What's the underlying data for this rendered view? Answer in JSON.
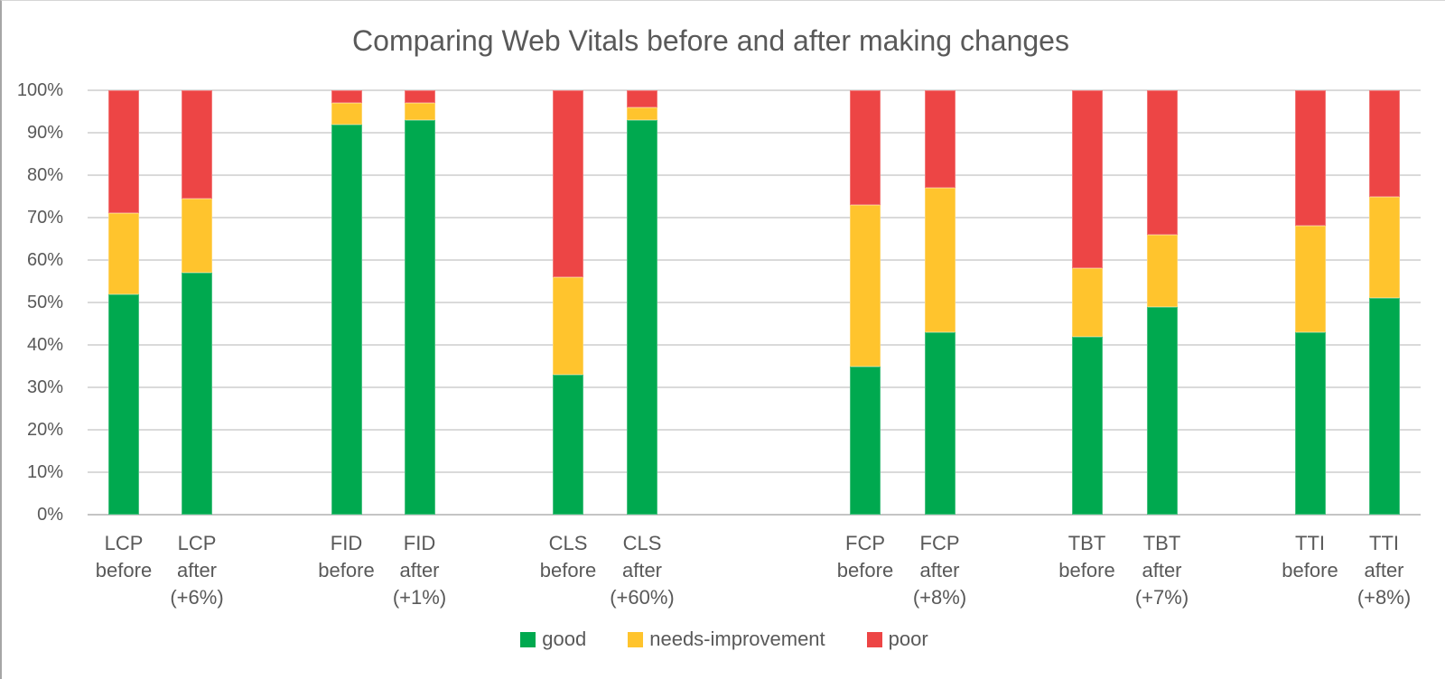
{
  "title": "Comparing Web Vitals before and after making changes",
  "chart_data": {
    "type": "bar",
    "stacked": true,
    "unit": "percent",
    "title": "Comparing Web Vitals before and after making changes",
    "categories": [
      "LCP before",
      "LCP after (+6%)",
      "FID before",
      "FID after (+1%)",
      "CLS before",
      "CLS after (+60%)",
      "FCP before",
      "FCP after (+8%)",
      "TBT before",
      "TBT after (+7%)",
      "TTI before",
      "TTI after (+8%)"
    ],
    "category_label_lines": [
      [
        "LCP",
        "before"
      ],
      [
        "LCP",
        "after",
        "(+6%)"
      ],
      [
        "FID",
        "before"
      ],
      [
        "FID",
        "after",
        "(+1%)"
      ],
      [
        "CLS",
        "before"
      ],
      [
        "CLS",
        "after",
        "(+60%)"
      ],
      [
        "FCP",
        "before"
      ],
      [
        "FCP",
        "after",
        "(+8%)"
      ],
      [
        "TBT",
        "before"
      ],
      [
        "TBT",
        "after",
        "(+7%)"
      ],
      [
        "TTI",
        "before"
      ],
      [
        "TTI",
        "after",
        "(+8%)"
      ]
    ],
    "series": [
      {
        "name": "good",
        "color": "#00A94F",
        "values": [
          52,
          57,
          92,
          93,
          33,
          93,
          35,
          43,
          42,
          49,
          43,
          51
        ]
      },
      {
        "name": "needs-improvement",
        "color": "#FFC42D",
        "values": [
          19,
          17.5,
          5,
          4,
          23,
          3,
          38,
          34,
          16,
          17,
          25,
          24
        ]
      },
      {
        "name": "poor",
        "color": "#ED4545",
        "values": [
          29,
          25.5,
          3,
          3,
          44,
          4,
          27,
          23,
          42,
          34,
          32,
          25
        ]
      }
    ],
    "y_ticks": [
      "0%",
      "10%",
      "20%",
      "30%",
      "40%",
      "50%",
      "60%",
      "70%",
      "80%",
      "90%",
      "100%"
    ],
    "ylim": [
      0,
      100
    ],
    "xlabel": "",
    "ylabel": "",
    "grid": true,
    "legend_position": "bottom",
    "text_color": "#595959",
    "gridline_color": "#DADADA"
  }
}
